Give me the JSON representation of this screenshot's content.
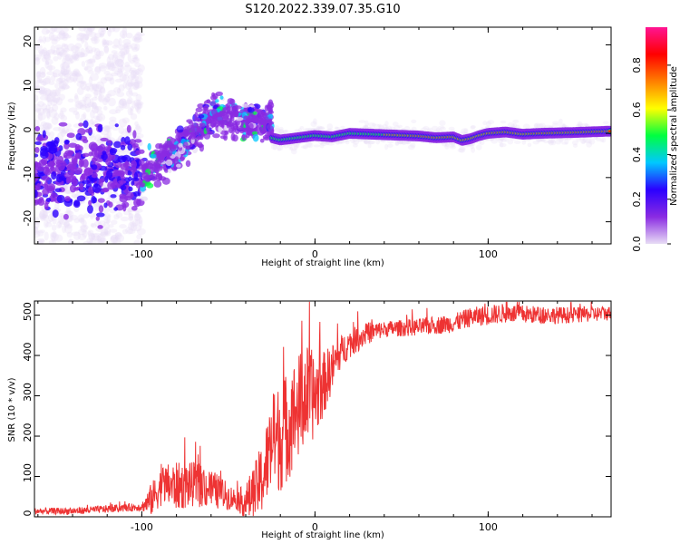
{
  "figure": {
    "title": "S120.2022.339.07.35.G10"
  },
  "chart_data": [
    {
      "type": "heatmap",
      "xlabel": "Height of straight line (km)",
      "ylabel": "Frequency (Hz)",
      "xlim": [
        -162,
        171
      ],
      "ylim": [
        -25,
        24
      ],
      "xticks": [
        -100,
        0,
        100
      ],
      "yticks": [
        -20,
        -10,
        0,
        10,
        20
      ],
      "grid": false,
      "colorbar": {
        "label": "Normalized spectral amplitude",
        "range": [
          0.0,
          0.97
        ],
        "ticks": [
          0.0,
          0.2,
          0.4,
          0.6,
          0.8
        ],
        "colormap": [
          "#e8ddf5",
          "#8a2be2",
          "#2b00ff",
          "#00c8ff",
          "#00ff40",
          "#ffff00",
          "#ff7f00",
          "#ff0000",
          "#ff1493"
        ]
      },
      "features": {
        "noise_band_x": [
          -162,
          -100
        ],
        "noise_band_center_freq": -8,
        "ramp": [
          [
            -100,
            -10
          ],
          [
            -80,
            -4
          ],
          [
            -60,
            4
          ],
          [
            -45,
            3
          ],
          [
            -30,
            2.5
          ]
        ],
        "trace": [
          [
            -25,
            -1
          ],
          [
            -20,
            -1.5
          ],
          [
            -10,
            -1
          ],
          [
            0,
            -0.5
          ],
          [
            10,
            -0.8
          ],
          [
            20,
            0
          ],
          [
            40,
            -0.3
          ],
          [
            60,
            -0.6
          ],
          [
            70,
            -1
          ],
          [
            80,
            -0.8
          ],
          [
            85,
            -1.6
          ],
          [
            90,
            -1.2
          ],
          [
            95,
            -0.5
          ],
          [
            100,
            0
          ],
          [
            110,
            0.3
          ],
          [
            120,
            -0.2
          ],
          [
            130,
            0
          ],
          [
            150,
            0.2
          ],
          [
            171,
            0.5
          ]
        ]
      }
    },
    {
      "type": "line",
      "xlabel": "Height of straight line (km)",
      "ylabel": "SNR (10 * v/v)",
      "xlim": [
        -162,
        171
      ],
      "ylim": [
        0,
        535
      ],
      "xticks": [
        -100,
        0,
        100
      ],
      "yticks": [
        0,
        100,
        200,
        300,
        400,
        500
      ],
      "grid": false,
      "series": [
        {
          "color": "#ee3333",
          "envelope": [
            [
              -162,
              14
            ],
            [
              -140,
              14
            ],
            [
              -110,
              22
            ],
            [
              -100,
              25
            ],
            [
              -95,
              40
            ],
            [
              -88,
              80
            ],
            [
              -80,
              75
            ],
            [
              -70,
              80
            ],
            [
              -60,
              70
            ],
            [
              -50,
              50
            ],
            [
              -40,
              35
            ],
            [
              -35,
              60
            ],
            [
              -30,
              100
            ],
            [
              -25,
              180
            ],
            [
              -20,
              200
            ],
            [
              -15,
              230
            ],
            [
              -10,
              270
            ],
            [
              -5,
              300
            ],
            [
              0,
              300
            ],
            [
              5,
              330
            ],
            [
              10,
              370
            ],
            [
              15,
              410
            ],
            [
              20,
              430
            ],
            [
              30,
              455
            ],
            [
              40,
              465
            ],
            [
              50,
              468
            ],
            [
              60,
              470
            ],
            [
              70,
              475
            ],
            [
              80,
              480
            ],
            [
              90,
              495
            ],
            [
              100,
              500
            ],
            [
              110,
              505
            ],
            [
              130,
              500
            ],
            [
              150,
              500
            ],
            [
              171,
              505
            ]
          ],
          "spread": [
            [
              -162,
              8
            ],
            [
              -100,
              10
            ],
            [
              -95,
              40
            ],
            [
              -80,
              60
            ],
            [
              -60,
              50
            ],
            [
              -45,
              25
            ],
            [
              -35,
              70
            ],
            [
              -20,
              140
            ],
            [
              -5,
              130
            ],
            [
              5,
              80
            ],
            [
              15,
              40
            ],
            [
              40,
              20
            ],
            [
              100,
              25
            ],
            [
              171,
              18
            ]
          ]
        }
      ]
    }
  ]
}
